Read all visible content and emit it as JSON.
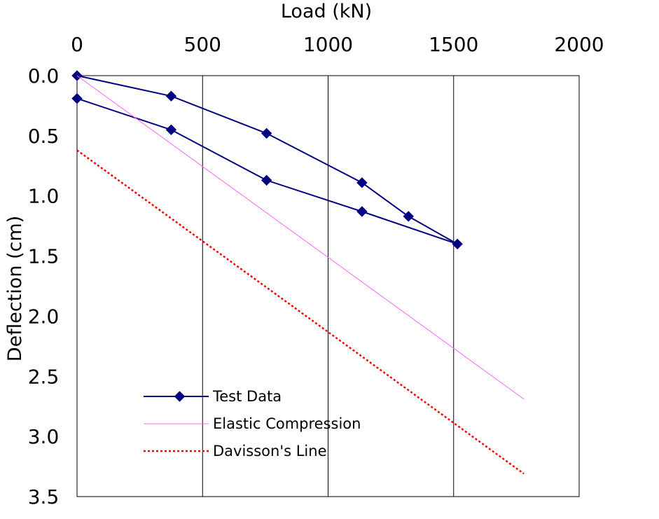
{
  "chart_data": {
    "type": "line",
    "title": "",
    "xlabel": "Load (kN)",
    "ylabel": "Deflection (cm)",
    "x_axis_position": "top",
    "y_axis_inverted": true,
    "xlim": [
      0,
      2000
    ],
    "ylim": [
      0,
      3.5
    ],
    "x_ticks": [
      "0",
      "500",
      "1000",
      "1500",
      "2000"
    ],
    "y_ticks": [
      "0.0",
      "0.5",
      "1.0",
      "1.5",
      "2.0",
      "2.5",
      "3.0",
      "3.5"
    ],
    "grid": "vertical",
    "legend_position": "bottom-left",
    "series": [
      {
        "name": "Test Data",
        "style": "solid-with-diamond-markers",
        "color": "#000080",
        "points": [
          [
            0,
            0.0
          ],
          [
            375,
            0.17
          ],
          [
            755,
            0.48
          ],
          [
            1135,
            0.89
          ],
          [
            1320,
            1.17
          ],
          [
            1515,
            1.4
          ],
          [
            1135,
            1.13
          ],
          [
            755,
            0.87
          ],
          [
            375,
            0.45
          ],
          [
            0,
            0.19
          ]
        ]
      },
      {
        "name": "Elastic Compression",
        "style": "solid",
        "color": "#ff66ff",
        "points": [
          [
            0,
            0.0
          ],
          [
            1780,
            2.69
          ]
        ]
      },
      {
        "name": "Davisson's Line",
        "style": "dotted",
        "color": "#ff0000",
        "points": [
          [
            0,
            0.62
          ],
          [
            1780,
            3.31
          ]
        ]
      }
    ]
  }
}
